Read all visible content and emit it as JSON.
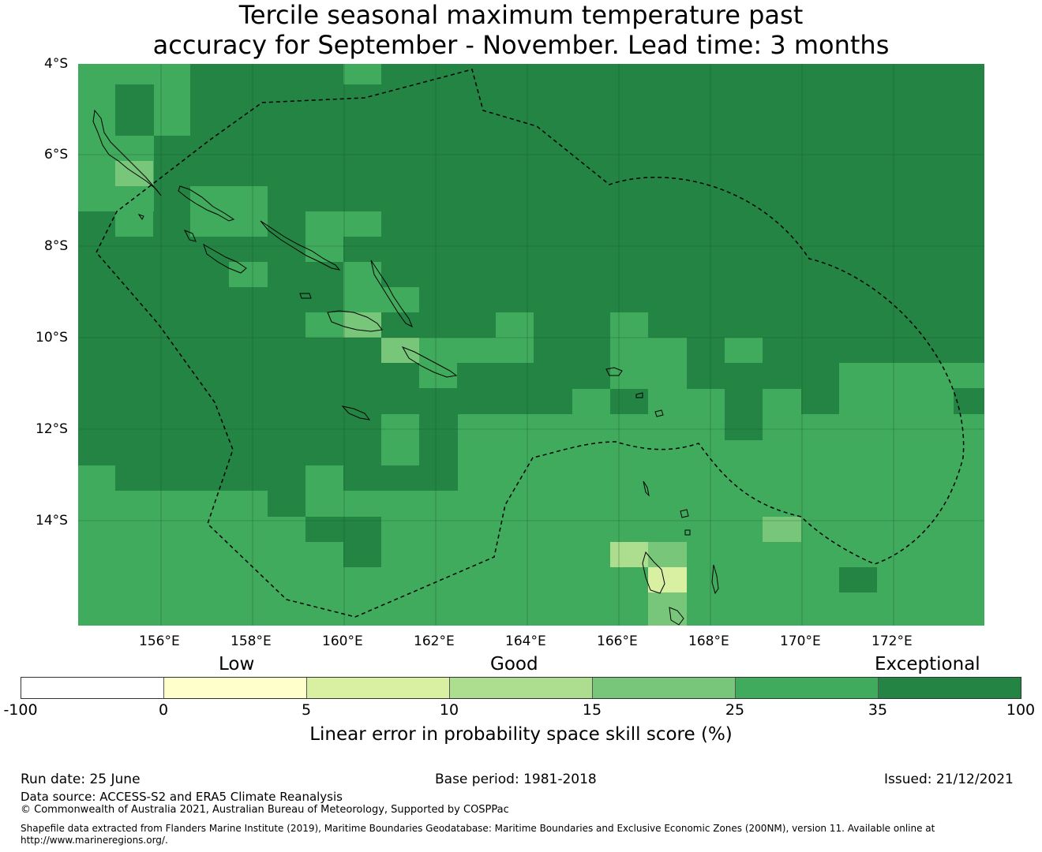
{
  "title_line1": "Tercile seasonal maximum temperature past",
  "title_line2": "accuracy for September - November. Lead time: 3 months",
  "map": {
    "lat_range_deg_south": [
      4,
      16.3
    ],
    "lon_range_deg_east": [
      154.2,
      174.0
    ],
    "lat_ticks": [
      "4°S",
      "6°S",
      "8°S",
      "10°S",
      "12°S",
      "14°S"
    ],
    "lon_ticks": [
      "156°E",
      "158°E",
      "160°E",
      "162°E",
      "164°E",
      "166°E",
      "168°E",
      "170°E",
      "172°E"
    ],
    "gridlines": true,
    "eez_boundary": "dashed",
    "dominant_category": "35 to 100",
    "secondary_category": "25 to 35"
  },
  "legend": {
    "words": {
      "low": "Low",
      "good": "Good",
      "exceptional": "Exceptional"
    },
    "ticks": [
      "-100",
      "0",
      "5",
      "10",
      "15",
      "25",
      "35",
      "100"
    ],
    "colors": [
      "#ffffff",
      "#ffffcc",
      "#d9f0a3",
      "#addd8e",
      "#78c679",
      "#41ab5d",
      "#238443"
    ],
    "label": "Linear error in probability space skill score (%)"
  },
  "footer": {
    "run_date": "Run date: 25 June",
    "base_period": "Base period: 1981-2018",
    "issued": "Issued: 21/12/2021",
    "data_source": "Data source: ACCESS-S2 and ERA5 Climate Reanalysis",
    "copyright": "© Commonwealth of Australia 2021, Australian Bureau of Meteorology, Supported by COSPPac",
    "shapefile_line1": "Shapefile data extracted from Flanders Marine Institute (2019), Maritime Boundaries Geodatabase: Maritime Boundaries and Exclusive Economic Zones (200NM), version 11. Available online at",
    "shapefile_line2": "http://www.marineregions.org/."
  }
}
